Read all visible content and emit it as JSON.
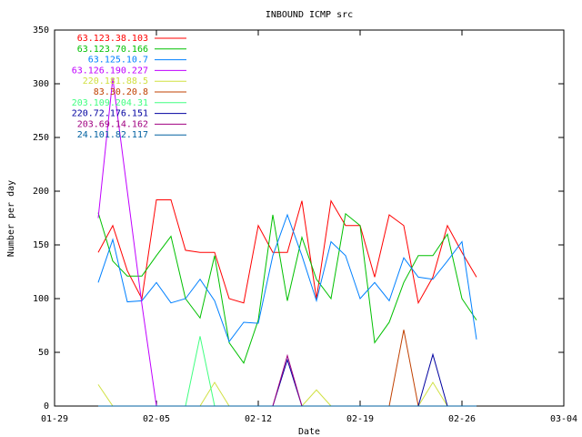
{
  "chart_data": {
    "type": "line",
    "title": "INBOUND ICMP src",
    "x_label": "Date",
    "y_label": "Number per day",
    "x": [
      "02-01",
      "02-02",
      "02-03",
      "02-04",
      "02-05",
      "02-06",
      "02-07",
      "02-08",
      "02-09",
      "02-10",
      "02-11",
      "02-12",
      "02-13",
      "02-14",
      "02-15",
      "02-16",
      "02-17",
      "02-18",
      "02-19",
      "02-20",
      "02-21",
      "02-22",
      "02-23",
      "02-24",
      "02-25",
      "02-26",
      "02-27"
    ],
    "xlim": [
      "01-29",
      "03-04"
    ],
    "xticks": [
      "01-29",
      "02-05",
      "02-12",
      "02-19",
      "02-26",
      "03-04"
    ],
    "ylim": [
      0,
      350
    ],
    "yticks": [
      0,
      50,
      100,
      150,
      200,
      250,
      300,
      350
    ],
    "grid": false,
    "legend": "top-left",
    "series": [
      {
        "name": "63.123.38.103",
        "color": "#ff0000",
        "values": [
          143,
          168,
          126,
          100,
          192,
          192,
          145,
          143,
          143,
          100,
          96,
          168,
          143,
          143,
          191,
          100,
          191,
          168,
          168,
          120,
          178,
          168,
          96,
          120,
          168,
          143,
          120
        ]
      },
      {
        "name": "63.123.70.166",
        "color": "#00c000",
        "values": [
          180,
          135,
          121,
          121,
          140,
          158,
          100,
          82,
          140,
          59,
          40,
          80,
          178,
          98,
          157,
          118,
          100,
          179,
          168,
          59,
          78,
          115,
          140,
          140,
          160,
          100,
          80
        ]
      },
      {
        "name": "63.125.10.7",
        "color": "#0080ff",
        "values": [
          115,
          155,
          97,
          98,
          115,
          96,
          100,
          118,
          98,
          60,
          78,
          77,
          140,
          178,
          140,
          98,
          153,
          140,
          100,
          115,
          98,
          138,
          120,
          118,
          135,
          153,
          62
        ]
      },
      {
        "name": "63.126.190.227",
        "color": "#c000ff",
        "values": [
          175,
          305,
          200,
          95,
          0,
          0,
          0,
          0,
          0,
          0,
          0,
          0,
          0,
          0,
          0,
          0,
          0,
          0,
          0,
          0,
          0,
          0,
          0,
          0,
          0,
          0,
          0
        ]
      },
      {
        "name": "220.181.88.5",
        "color": "#d0e040",
        "values": [
          20,
          0,
          0,
          0,
          0,
          0,
          0,
          0,
          22,
          0,
          0,
          0,
          0,
          0,
          0,
          15,
          0,
          0,
          0,
          0,
          0,
          0,
          0,
          22,
          0,
          0,
          0
        ]
      },
      {
        "name": "83.30.20.8",
        "color": "#c04000",
        "values": [
          0,
          0,
          0,
          0,
          0,
          0,
          0,
          0,
          0,
          0,
          0,
          0,
          0,
          0,
          0,
          0,
          0,
          0,
          0,
          0,
          0,
          71,
          0,
          0,
          0,
          0,
          0
        ]
      },
      {
        "name": "203.109.204.31",
        "color": "#40ff80",
        "values": [
          0,
          0,
          0,
          0,
          0,
          0,
          0,
          65,
          0,
          0,
          0,
          0,
          0,
          0,
          0,
          0,
          0,
          0,
          0,
          0,
          0,
          0,
          0,
          0,
          0,
          0,
          0
        ]
      },
      {
        "name": "220.72.176.151",
        "color": "#0000a0",
        "values": [
          0,
          0,
          0,
          0,
          0,
          0,
          0,
          0,
          0,
          0,
          0,
          0,
          0,
          43,
          0,
          0,
          0,
          0,
          0,
          0,
          0,
          0,
          0,
          48,
          0,
          0,
          0
        ]
      },
      {
        "name": "203.69.14.162",
        "color": "#a00080",
        "values": [
          0,
          0,
          0,
          0,
          0,
          0,
          0,
          0,
          0,
          0,
          0,
          0,
          0,
          47,
          0,
          0,
          0,
          0,
          0,
          0,
          0,
          0,
          0,
          0,
          0,
          0,
          0
        ]
      },
      {
        "name": "24.101.82.117",
        "color": "#0060a0",
        "values": [
          0,
          0,
          0,
          0,
          0,
          0,
          0,
          0,
          0,
          0,
          0,
          0,
          0,
          0,
          0,
          0,
          0,
          0,
          0,
          0,
          0,
          0,
          0,
          0,
          0,
          0,
          0
        ]
      }
    ]
  }
}
